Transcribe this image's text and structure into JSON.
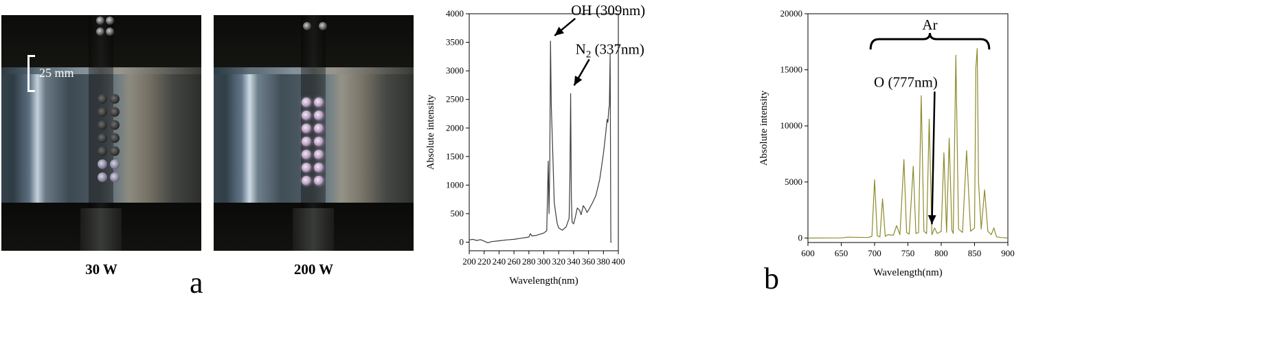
{
  "figure": {
    "panel_a_letter": "a",
    "panel_b_letter": "b"
  },
  "photos": [
    {
      "label": "30 W",
      "scale_label": "25 mm"
    },
    {
      "label": "200 W"
    }
  ],
  "chart_data": [
    {
      "type": "line",
      "title": "",
      "xlabel": "Wavelength(nm)",
      "ylabel": "Absolute intensity",
      "xlim": [
        200,
        400
      ],
      "ylim": [
        -150,
        4000
      ],
      "xticks": [
        200,
        220,
        240,
        260,
        280,
        300,
        320,
        340,
        360,
        380,
        400
      ],
      "yticks": [
        0,
        500,
        1000,
        1500,
        2000,
        2500,
        3000,
        3500,
        4000
      ],
      "line_color": "#3a3a3a",
      "series": [
        {
          "x": [
            200,
            205,
            210,
            215,
            220,
            225,
            230,
            240,
            250,
            260,
            270,
            280,
            282,
            284,
            290,
            300,
            304,
            306,
            307,
            308,
            309,
            310,
            312,
            314,
            316,
            318,
            320,
            325,
            330,
            334,
            335,
            336,
            337,
            338,
            340,
            342,
            345,
            348,
            350,
            353,
            356,
            358,
            360,
            365,
            370,
            375,
            380,
            383,
            385,
            386,
            387,
            388,
            389,
            390,
            391
          ],
          "y": [
            40,
            50,
            30,
            45,
            20,
            -10,
            10,
            25,
            40,
            50,
            70,
            90,
            150,
            110,
            120,
            160,
            200,
            1420,
            500,
            1300,
            3520,
            2400,
            1600,
            700,
            500,
            330,
            250,
            210,
            270,
            420,
            1100,
            2600,
            800,
            350,
            320,
            420,
            600,
            560,
            480,
            640,
            580,
            520,
            560,
            680,
            820,
            1100,
            1550,
            1900,
            2150,
            2100,
            2300,
            2400,
            3300,
            0,
            0
          ]
        }
      ],
      "annotations": [
        {
          "text": "OH (309nm)",
          "x": 309,
          "y": 3520
        },
        {
          "text": "N",
          "subscript": "2",
          "suffix": " (337nm)",
          "x": 337,
          "y": 2600
        }
      ]
    },
    {
      "type": "line",
      "title": "",
      "xlabel": "Wavelength(nm)",
      "ylabel": "Absolute intensity",
      "xlim": [
        600,
        900
      ],
      "ylim": [
        -400,
        20000
      ],
      "xticks": [
        600,
        650,
        700,
        750,
        800,
        850,
        900
      ],
      "yticks": [
        0,
        5000,
        10000,
        15000,
        20000
      ],
      "line_color": "#8c8a2a",
      "series": [
        {
          "x": [
            600,
            650,
            660,
            690,
            696,
            700,
            704,
            708,
            712,
            716,
            720,
            728,
            733,
            738,
            744,
            748,
            752,
            758,
            762,
            766,
            770,
            774,
            778,
            782,
            786,
            790,
            794,
            800,
            804,
            808,
            812,
            816,
            818,
            822,
            826,
            832,
            838,
            844,
            850,
            852,
            854,
            856,
            860,
            865,
            870,
            875,
            879,
            883,
            890,
            900
          ],
          "y": [
            0,
            10,
            80,
            50,
            150,
            5200,
            200,
            100,
            3500,
            150,
            300,
            250,
            1100,
            300,
            7000,
            500,
            350,
            6400,
            400,
            500,
            12700,
            600,
            400,
            10600,
            300,
            900,
            400,
            600,
            7600,
            500,
            8900,
            700,
            400,
            16300,
            800,
            500,
            7800,
            600,
            900,
            15200,
            16900,
            5000,
            800,
            4300,
            600,
            300,
            900,
            100,
            50,
            0
          ]
        }
      ],
      "annotations": [
        {
          "text": "Ar",
          "x_range": [
            694,
            872
          ]
        },
        {
          "text": "O (777nm)",
          "x": 786,
          "y": 500
        }
      ]
    }
  ]
}
